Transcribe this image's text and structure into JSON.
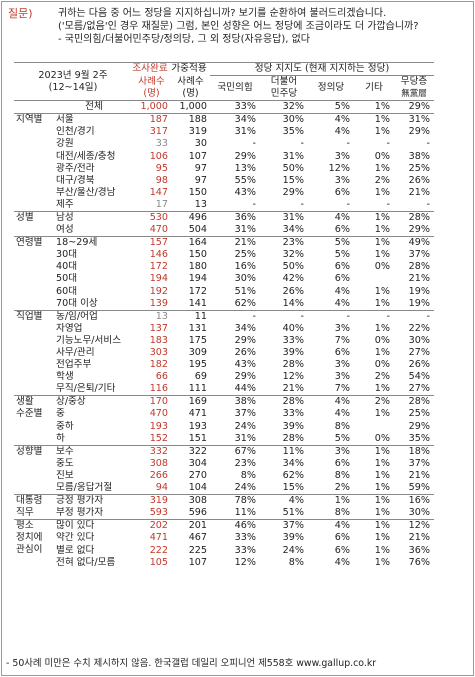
{
  "question": {
    "tag": "질문)",
    "lines": [
      "귀하는 다음 중 어느 정당을 지지하십니까? 보기를 순환하여 불러드리겠습니다.",
      "('모름/없음'인 경우 재질문) 그럼, 본인 성향은 어느 정당에 조금이라도 더 가깝습니까?",
      "- 국민의힘/더불어민주당/정의당, 그 외 정당(자유응답), 없다"
    ]
  },
  "header": {
    "date": "2023년 9월 2주",
    "date_range": "(12~14일)",
    "survey_done": "조사완료",
    "sample_n": "사례수",
    "sample_unit": "(명)",
    "weighted": "가중적용",
    "weighted_n": "사례수",
    "weighted_unit": "(명)",
    "support_title": "정당 지지도 (현재 지지하는 정당)",
    "party1": "국민의힘",
    "party2a": "더불어",
    "party2b": "민주당",
    "party3": "정의당",
    "party4": "기타",
    "party5a": "무당층",
    "party5b": "無黨層"
  },
  "rows": [
    {
      "g": "",
      "s": "전체",
      "n1": "1,000",
      "n2": "1,000",
      "p1": "33%",
      "p2": "32%",
      "p3": "5%",
      "p4": "1%",
      "p5": "29%",
      "total": true
    },
    {
      "g": "지역별",
      "s": "서울",
      "n1": "187",
      "n2": "188",
      "p1": "34%",
      "p2": "30%",
      "p3": "4%",
      "p4": "1%",
      "p5": "31%",
      "start": true
    },
    {
      "g": "",
      "s": "인천/경기",
      "n1": "317",
      "n2": "319",
      "p1": "31%",
      "p2": "35%",
      "p3": "4%",
      "p4": "1%",
      "p5": "29%"
    },
    {
      "g": "",
      "s": "강원",
      "n1": "33",
      "n2": "30",
      "p1": "-",
      "p2": "-",
      "p3": "-",
      "p4": "-",
      "p5": "-",
      "grey": true
    },
    {
      "g": "",
      "s": "대전/세종/충청",
      "n1": "106",
      "n2": "107",
      "p1": "29%",
      "p2": "31%",
      "p3": "3%",
      "p4": "0%",
      "p5": "38%"
    },
    {
      "g": "",
      "s": "광주/전라",
      "n1": "95",
      "n2": "97",
      "p1": "13%",
      "p2": "50%",
      "p3": "12%",
      "p4": "1%",
      "p5": "25%"
    },
    {
      "g": "",
      "s": "대구/경북",
      "n1": "98",
      "n2": "97",
      "p1": "55%",
      "p2": "15%",
      "p3": "3%",
      "p4": "2%",
      "p5": "26%"
    },
    {
      "g": "",
      "s": "부산/울산/경남",
      "n1": "147",
      "n2": "150",
      "p1": "43%",
      "p2": "29%",
      "p3": "6%",
      "p4": "1%",
      "p5": "21%"
    },
    {
      "g": "",
      "s": "제주",
      "n1": "17",
      "n2": "13",
      "p1": "-",
      "p2": "-",
      "p3": "-",
      "p4": "-",
      "p5": "-",
      "grey": true
    },
    {
      "g": "성별",
      "s": "남성",
      "n1": "530",
      "n2": "496",
      "p1": "36%",
      "p2": "31%",
      "p3": "4%",
      "p4": "1%",
      "p5": "28%",
      "start": true
    },
    {
      "g": "",
      "s": "여성",
      "n1": "470",
      "n2": "504",
      "p1": "31%",
      "p2": "34%",
      "p3": "6%",
      "p4": "1%",
      "p5": "29%"
    },
    {
      "g": "연령별",
      "s": "18~29세",
      "n1": "157",
      "n2": "164",
      "p1": "21%",
      "p2": "23%",
      "p3": "5%",
      "p4": "1%",
      "p5": "49%",
      "start": true
    },
    {
      "g": "",
      "s": "30대",
      "n1": "146",
      "n2": "150",
      "p1": "25%",
      "p2": "32%",
      "p3": "5%",
      "p4": "1%",
      "p5": "37%"
    },
    {
      "g": "",
      "s": "40대",
      "n1": "172",
      "n2": "180",
      "p1": "16%",
      "p2": "50%",
      "p3": "6%",
      "p4": "0%",
      "p5": "28%"
    },
    {
      "g": "",
      "s": "50대",
      "n1": "194",
      "n2": "194",
      "p1": "30%",
      "p2": "42%",
      "p3": "6%",
      "p4": "",
      "p5": "21%"
    },
    {
      "g": "",
      "s": "60대",
      "n1": "192",
      "n2": "172",
      "p1": "51%",
      "p2": "26%",
      "p3": "4%",
      "p4": "1%",
      "p5": "19%"
    },
    {
      "g": "",
      "s": "70대 이상",
      "n1": "139",
      "n2": "141",
      "p1": "62%",
      "p2": "14%",
      "p3": "4%",
      "p4": "1%",
      "p5": "19%"
    },
    {
      "g": "직업별",
      "s": "농/임/어업",
      "n1": "13",
      "n2": "11",
      "p1": "-",
      "p2": "-",
      "p3": "-",
      "p4": "-",
      "p5": "-",
      "grey": true,
      "start": true
    },
    {
      "g": "",
      "s": "자영업",
      "n1": "137",
      "n2": "131",
      "p1": "34%",
      "p2": "40%",
      "p3": "3%",
      "p4": "1%",
      "p5": "22%"
    },
    {
      "g": "",
      "s": "기능노무/서비스",
      "n1": "183",
      "n2": "175",
      "p1": "29%",
      "p2": "33%",
      "p3": "7%",
      "p4": "0%",
      "p5": "30%"
    },
    {
      "g": "",
      "s": "사무/관리",
      "n1": "303",
      "n2": "309",
      "p1": "26%",
      "p2": "39%",
      "p3": "6%",
      "p4": "1%",
      "p5": "27%"
    },
    {
      "g": "",
      "s": "전업주부",
      "n1": "182",
      "n2": "195",
      "p1": "43%",
      "p2": "28%",
      "p3": "3%",
      "p4": "0%",
      "p5": "26%"
    },
    {
      "g": "",
      "s": "학생",
      "n1": "66",
      "n2": "69",
      "p1": "29%",
      "p2": "12%",
      "p3": "3%",
      "p4": "2%",
      "p5": "54%"
    },
    {
      "g": "",
      "s": "무직/은퇴/기타",
      "n1": "116",
      "n2": "111",
      "p1": "44%",
      "p2": "21%",
      "p3": "7%",
      "p4": "1%",
      "p5": "27%"
    },
    {
      "g": "생활",
      "s": "상/중상",
      "n1": "170",
      "n2": "169",
      "p1": "38%",
      "p2": "28%",
      "p3": "4%",
      "p4": "2%",
      "p5": "28%",
      "start": true
    },
    {
      "g": "수준별",
      "s": "중",
      "n1": "470",
      "n2": "471",
      "p1": "37%",
      "p2": "33%",
      "p3": "4%",
      "p4": "1%",
      "p5": "25%"
    },
    {
      "g": "",
      "s": "중하",
      "n1": "193",
      "n2": "193",
      "p1": "24%",
      "p2": "39%",
      "p3": "8%",
      "p4": "",
      "p5": "29%"
    },
    {
      "g": "",
      "s": "하",
      "n1": "152",
      "n2": "151",
      "p1": "31%",
      "p2": "28%",
      "p3": "5%",
      "p4": "0%",
      "p5": "35%"
    },
    {
      "g": "성향별",
      "s": "보수",
      "n1": "332",
      "n2": "322",
      "p1": "67%",
      "p2": "11%",
      "p3": "3%",
      "p4": "1%",
      "p5": "18%",
      "start": true
    },
    {
      "g": "",
      "s": "중도",
      "n1": "308",
      "n2": "304",
      "p1": "23%",
      "p2": "34%",
      "p3": "6%",
      "p4": "1%",
      "p5": "37%"
    },
    {
      "g": "",
      "s": "진보",
      "n1": "266",
      "n2": "270",
      "p1": "8%",
      "p2": "62%",
      "p3": "8%",
      "p4": "1%",
      "p5": "21%"
    },
    {
      "g": "",
      "s": "모름/응답거절",
      "n1": "94",
      "n2": "104",
      "p1": "24%",
      "p2": "15%",
      "p3": "2%",
      "p4": "1%",
      "p5": "59%"
    },
    {
      "g": "대통령",
      "s": "긍정 평가자",
      "n1": "319",
      "n2": "308",
      "p1": "78%",
      "p2": "4%",
      "p3": "1%",
      "p4": "1%",
      "p5": "16%",
      "start": true
    },
    {
      "g": "직무",
      "s": "부정 평가자",
      "n1": "593",
      "n2": "596",
      "p1": "11%",
      "p2": "51%",
      "p3": "8%",
      "p4": "1%",
      "p5": "30%"
    },
    {
      "g": "평소",
      "s": "많이 있다",
      "n1": "202",
      "n2": "201",
      "p1": "46%",
      "p2": "37%",
      "p3": "4%",
      "p4": "1%",
      "p5": "12%",
      "start": true
    },
    {
      "g": "정치에",
      "s": "약간 있다",
      "n1": "471",
      "n2": "467",
      "p1": "33%",
      "p2": "39%",
      "p3": "6%",
      "p4": "1%",
      "p5": "21%"
    },
    {
      "g": "관심이",
      "s": "별로 없다",
      "n1": "222",
      "n2": "225",
      "p1": "33%",
      "p2": "24%",
      "p3": "6%",
      "p4": "1%",
      "p5": "36%"
    },
    {
      "g": "",
      "s": "전혀 없다/모름",
      "n1": "105",
      "n2": "107",
      "p1": "12%",
      "p2": "8%",
      "p3": "4%",
      "p4": "1%",
      "p5": "76%"
    }
  ],
  "footer": "- 50사례 미만은 수치 제시하지 않음. 한국갤럽 데일리 오피니언 제558호 www.gallup.co.kr"
}
